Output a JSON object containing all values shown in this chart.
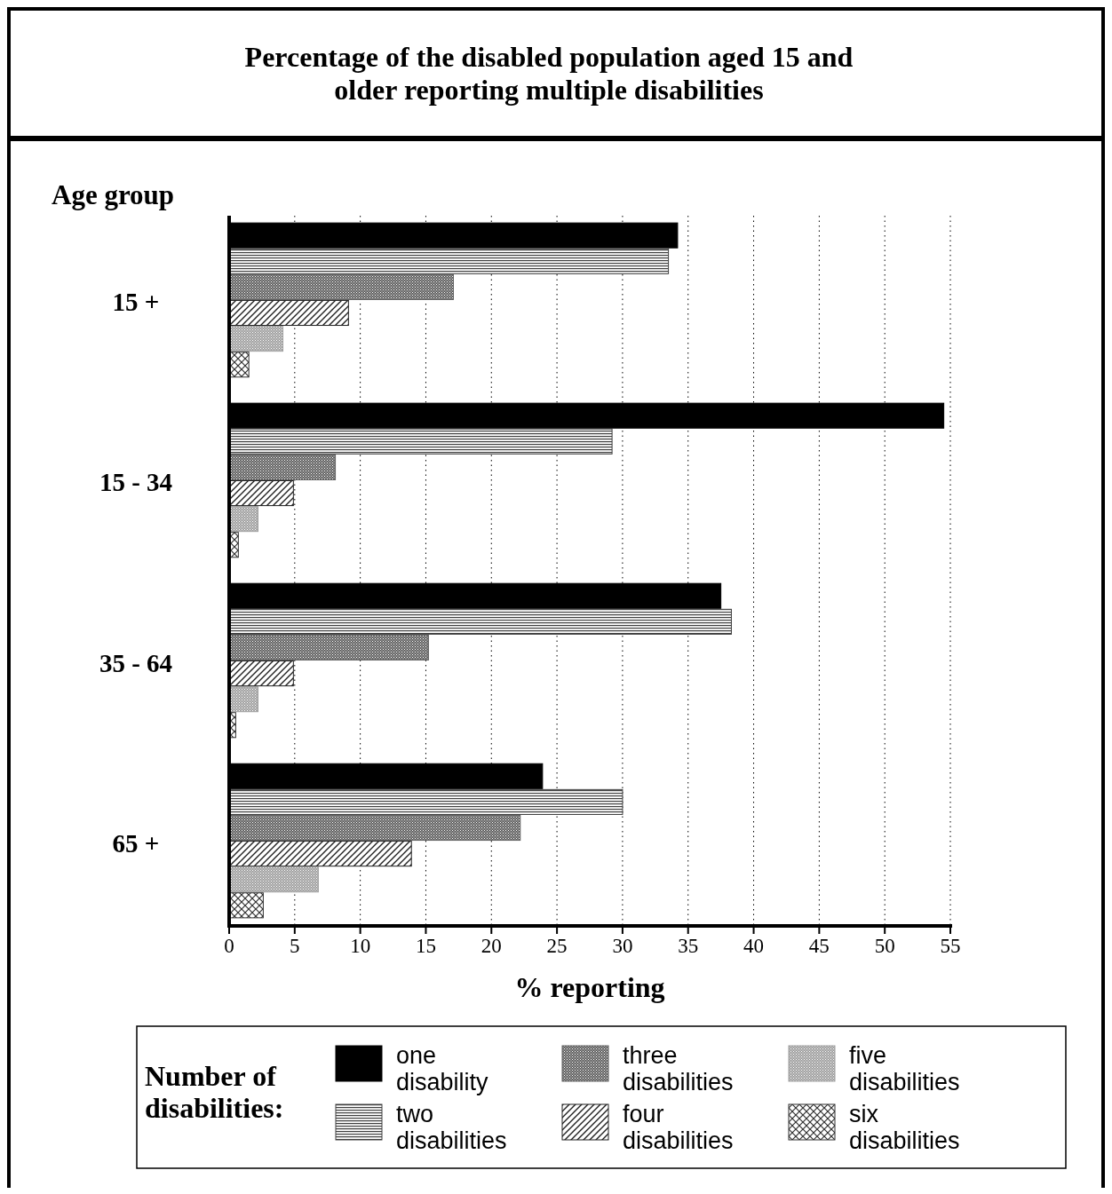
{
  "chart_data": {
    "type": "bar",
    "orientation": "horizontal",
    "title": "Percentage of the disabled population aged 15 and older reporting multiple disabilities",
    "ylabel": "Age group",
    "xlabel": "% reporting",
    "legend_title": "Number of disabilities:",
    "legend": "bottom",
    "grid": "x",
    "categories": [
      "15 +",
      "15 - 34",
      "35 - 64",
      "65 +"
    ],
    "xlim": [
      0,
      55
    ],
    "xticks": [
      0,
      5,
      10,
      15,
      20,
      25,
      30,
      35,
      40,
      45,
      50,
      55
    ],
    "series": [
      {
        "name": "one disability",
        "color": "#000000",
        "values": [
          34.2,
          54.5,
          37.5,
          23.9
        ]
      },
      {
        "name": "two disabilities",
        "color": "#404040",
        "values": [
          33.5,
          29.2,
          38.3,
          30.0
        ]
      },
      {
        "name": "three disabilities",
        "color": "#606060",
        "values": [
          17.1,
          8.1,
          15.2,
          22.2
        ]
      },
      {
        "name": "four disabilities",
        "color": "#202020",
        "values": [
          9.1,
          4.9,
          4.9,
          13.9
        ]
      },
      {
        "name": "five disabilities",
        "color": "#a0a0a0",
        "values": [
          4.1,
          2.2,
          2.2,
          6.8
        ]
      },
      {
        "name": "six disabilities",
        "color": "#303030",
        "values": [
          1.5,
          0.7,
          0.5,
          2.6
        ]
      }
    ]
  }
}
